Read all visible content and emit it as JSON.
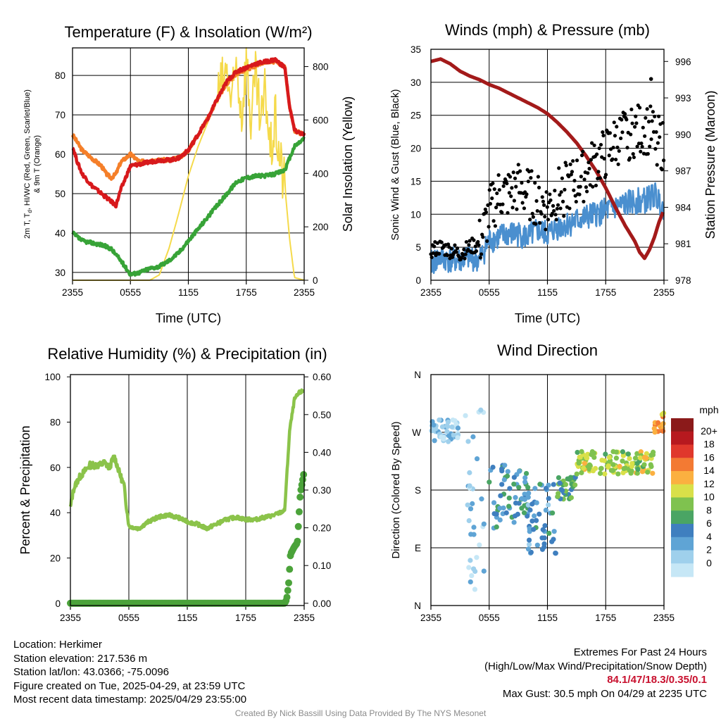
{
  "colors": {
    "t2m": "#d7191c",
    "t9m": "#f57f29",
    "dewpoint": "#37a337",
    "insolation": "#f5da4b",
    "wind": "#4a8fcf",
    "gust": "#000000",
    "pressure": "#a31a1a",
    "rh": "#8bc34a",
    "precip": "#4ba33a"
  },
  "chart_data": [
    {
      "type": "line",
      "title": "Temperature (F) & Insolation (W/m²)",
      "xlabel": "Time (UTC)",
      "ylabel_lines": [
        "2m T, T",
        "d",
        ", HI/WC (Red, Green, Scarlet/Blue)",
        "& 9m T (Orange)"
      ],
      "ylabel_right": "Solar Insolation (Yellow)",
      "xticks": [
        "2355",
        "0555",
        "1155",
        "1755",
        "2355"
      ],
      "x_hours": [
        0,
        6,
        12,
        18,
        24
      ],
      "ylim": [
        28,
        87
      ],
      "yticks": [
        30,
        40,
        50,
        60,
        70,
        80
      ],
      "ylim_right": [
        0,
        870
      ],
      "yticks_right": [
        0,
        200,
        400,
        600,
        800
      ],
      "grid": true,
      "series": [
        {
          "key": "t9m",
          "axis": "left",
          "x": [
            0,
            0.5,
            1,
            2,
            3,
            3.5,
            4,
            4.5,
            5,
            6,
            7,
            8,
            9,
            10,
            11,
            12,
            13,
            14,
            15,
            16,
            17,
            18,
            19,
            20,
            21,
            21.5,
            22,
            22.5,
            23,
            24
          ],
          "y": [
            65,
            63,
            61,
            59,
            57,
            55,
            54,
            55,
            58,
            60,
            58,
            58.5,
            58.5,
            58.5,
            59,
            61,
            65,
            69,
            74,
            78,
            80.5,
            81.5,
            82.5,
            83.5,
            83.5,
            83,
            82,
            72,
            66,
            65
          ]
        },
        {
          "key": "t2m",
          "axis": "left",
          "x": [
            0,
            0.5,
            1,
            2,
            3,
            3.5,
            4,
            4.5,
            5,
            6,
            7,
            8,
            9,
            10,
            11,
            12,
            13,
            14,
            15,
            16,
            17,
            18,
            19,
            20,
            21,
            21.5,
            22,
            22.5,
            23,
            24
          ],
          "y": [
            62,
            58,
            55,
            52,
            50,
            49,
            48,
            47,
            51,
            57,
            57.5,
            58,
            58.5,
            58.5,
            59,
            61,
            65,
            69,
            74,
            78.5,
            81,
            82,
            83,
            83.5,
            84,
            83,
            82,
            72,
            66,
            65
          ]
        },
        {
          "key": "dewpoint",
          "axis": "left",
          "x": [
            0,
            0.5,
            1,
            2,
            3,
            4,
            5,
            6,
            7,
            8,
            9,
            10,
            11,
            12,
            13,
            14,
            15,
            16,
            17,
            18,
            19,
            20,
            21,
            22,
            23,
            24
          ],
          "y": [
            40,
            39,
            38,
            37.5,
            37,
            36,
            33,
            29.5,
            30,
            31,
            31.5,
            33,
            35,
            38,
            41,
            44,
            47,
            50,
            53,
            54,
            54.5,
            54.5,
            55,
            56,
            62,
            64
          ]
        },
        {
          "key": "insolation",
          "axis": "right",
          "x": [
            0,
            8,
            9,
            10,
            11,
            12,
            13,
            14,
            15,
            16,
            16.5,
            17,
            17.5,
            18,
            18.5,
            19,
            19.5,
            20,
            20.5,
            21,
            21.5,
            22,
            22.5,
            23,
            24
          ],
          "y": [
            0,
            0,
            20,
            120,
            250,
            390,
            500,
            590,
            690,
            780,
            640,
            820,
            620,
            830,
            590,
            760,
            560,
            720,
            470,
            600,
            450,
            350,
            150,
            10,
            0
          ]
        }
      ]
    },
    {
      "type": "line",
      "title": "Winds (mph) & Pressure (mb)",
      "xlabel": "Time (UTC)",
      "ylabel": "Sonic Wind & Gust (Blue, Black)",
      "ylabel_right": "Station Pressure (Maroon)",
      "xticks": [
        "2355",
        "0555",
        "1155",
        "1755",
        "2355"
      ],
      "x_hours": [
        0,
        6,
        12,
        18,
        24
      ],
      "ylim": [
        0,
        35
      ],
      "yticks": [
        0,
        5,
        10,
        15,
        20,
        25,
        30,
        35
      ],
      "ylim_right": [
        978,
        997
      ],
      "yticks_right": [
        978,
        981,
        984,
        987,
        990,
        993,
        996
      ],
      "grid": true,
      "series": [
        {
          "key": "pressure",
          "axis": "right",
          "x": [
            0,
            1,
            2,
            3,
            4,
            5,
            6,
            7,
            8,
            9,
            10,
            11,
            12,
            13,
            14,
            15,
            16,
            17,
            18,
            19,
            20,
            21,
            21.5,
            22,
            22.5,
            23,
            23.5,
            24
          ],
          "y": [
            996,
            996.2,
            995.8,
            995.2,
            994.8,
            994.5,
            994.1,
            993.8,
            993.4,
            993,
            992.6,
            992.2,
            991.7,
            991,
            990.2,
            989.3,
            988.2,
            987,
            985.6,
            984,
            982.5,
            981.2,
            980.3,
            979.8,
            980.5,
            981.5,
            982.8,
            983.8
          ]
        },
        {
          "key": "wind",
          "axis": "left",
          "x": [
            0,
            1,
            2,
            3,
            4,
            5,
            6,
            7,
            8,
            9,
            10,
            11,
            12,
            13,
            14,
            15,
            16,
            17,
            18,
            19,
            20,
            21,
            22,
            23,
            24
          ],
          "y": [
            2.5,
            3.5,
            3,
            3,
            3.5,
            3,
            6,
            6.5,
            7,
            7,
            6.5,
            7.5,
            7,
            8,
            8.5,
            9,
            9.5,
            10,
            10.5,
            11,
            11.5,
            12,
            12,
            13,
            11
          ]
        },
        {
          "key": "gust",
          "axis": "left",
          "x": [
            0,
            1,
            2,
            3,
            4,
            5,
            6,
            7,
            8,
            9,
            10,
            11,
            12,
            13,
            14,
            15,
            16,
            17,
            18,
            19,
            20,
            21,
            22,
            23,
            24
          ],
          "y": [
            4.5,
            5,
            4.5,
            4,
            5,
            5.5,
            10,
            13,
            13,
            14,
            13,
            12,
            11,
            13,
            14,
            15,
            16,
            18,
            19,
            21,
            22,
            22.5,
            23,
            22,
            20
          ]
        }
      ],
      "max_gust_point": {
        "x": 22.67,
        "y": 30.5
      }
    },
    {
      "type": "line",
      "title": "Relative Humidity (%) & Precipitation (in)",
      "ylabel": "Percent & Precipitation",
      "xticks": [
        "2355",
        "0555",
        "1155",
        "1755",
        "2355"
      ],
      "x_hours": [
        0,
        6,
        12,
        18,
        24
      ],
      "ylim": [
        -1,
        101
      ],
      "yticks": [
        0,
        20,
        40,
        60,
        80,
        100
      ],
      "ylim_right": [
        -0.006,
        0.606
      ],
      "yticks_right": [
        "0.00",
        "0.10",
        "0.20",
        "0.30",
        "0.40",
        "0.50",
        "0.60"
      ],
      "grid": true,
      "series": [
        {
          "key": "rh",
          "axis": "left",
          "x": [
            0,
            0.3,
            0.7,
            1,
            2,
            3,
            3.5,
            4,
            4.5,
            5,
            5.5,
            6,
            7,
            8,
            9,
            10,
            11,
            12,
            13,
            14,
            15,
            16,
            17,
            18,
            19,
            20,
            21,
            21.5,
            22,
            22.5,
            23,
            23.5,
            24
          ],
          "y": [
            42,
            50,
            54,
            56,
            61,
            61,
            62,
            60,
            65,
            58,
            52,
            34,
            33,
            36,
            38,
            39,
            38,
            36,
            35,
            33,
            35,
            37,
            38,
            37,
            37,
            38,
            39,
            40,
            41,
            76,
            90,
            93,
            94
          ]
        },
        {
          "key": "precip",
          "axis": "right",
          "x": [
            0,
            21.5,
            22,
            22.2,
            22.4,
            22.6,
            22.8,
            23,
            23.3,
            23.6,
            24
          ],
          "y": [
            0,
            0,
            0,
            0.01,
            0.05,
            0.13,
            0.14,
            0.15,
            0.16,
            0.29,
            0.35
          ]
        }
      ]
    },
    {
      "type": "scatter",
      "title": "Wind Direction",
      "ylabel": "Direction (Colored By Speed)",
      "xticks": [
        "2355",
        "0555",
        "1155",
        "1755",
        "2355"
      ],
      "x_hours": [
        0,
        6,
        12,
        18,
        24
      ],
      "yticks": [
        "N",
        "E",
        "S",
        "W",
        "N"
      ],
      "ylim": [
        0,
        360
      ],
      "grid": true,
      "legend": {
        "title": "mph",
        "labels": [
          "0",
          "2",
          "4",
          "6",
          "8",
          "10",
          "12",
          "14",
          "16",
          "18",
          "20+"
        ],
        "colors": [
          "#c6e7f6",
          "#9fd0ec",
          "#5fa4d5",
          "#3f7fbf",
          "#4aa564",
          "#7fc24f",
          "#d9e049",
          "#fbb040",
          "#f37a33",
          "#e0382c",
          "#b7191f",
          "#8b1a1a"
        ],
        "placement": "right"
      },
      "points_speed_note": "color bins by wind speed",
      "clusters": [
        {
          "x0": 0,
          "x1": 3,
          "dir0": 255,
          "dir1": 290,
          "speed": 2
        },
        {
          "x0": 3.5,
          "x1": 5.5,
          "dir0": 20,
          "dir1": 310,
          "speed": 2
        },
        {
          "x0": 6,
          "x1": 10,
          "dir0": 120,
          "dir1": 220,
          "speed": 6
        },
        {
          "x0": 10,
          "x1": 13,
          "dir0": 80,
          "dir1": 190,
          "speed": 5
        },
        {
          "x0": 13,
          "x1": 15,
          "dir0": 160,
          "dir1": 200,
          "speed": 8
        },
        {
          "x0": 15,
          "x1": 23,
          "dir0": 205,
          "dir1": 240,
          "speed": 11
        },
        {
          "x0": 23,
          "x1": 24,
          "dir0": 270,
          "dir1": 300,
          "speed": 14
        }
      ]
    }
  ],
  "footer": {
    "location": "Location: Herkimer",
    "elevation": "Station elevation: 217.536 m",
    "latlon": "Station lat/lon: 43.0366; -75.0096",
    "created": "Figure created on Tue, 2025-04-29, at 23:59 UTC",
    "recent": "Most recent data timestamp: 2025/04/29 23:55:00",
    "extremes_title": "Extremes For Past 24 Hours",
    "extremes_sub": "(High/Low/Max Wind/Precipitation/Snow Depth)",
    "extremes_values": "84.1/47/18.3/0.35/0.1",
    "max_gust": "Max Gust: 30.5 mph On 04/29 at 2235 UTC",
    "credit": "Created By Nick Bassill Using Data Provided By The NYS Mesonet"
  }
}
